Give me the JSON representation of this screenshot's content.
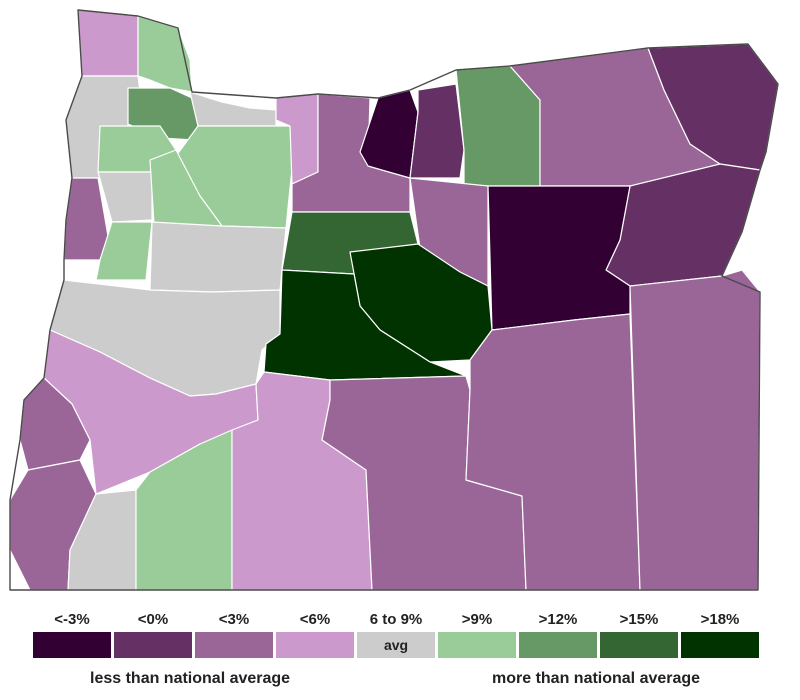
{
  "map": {
    "colors": {
      "lt_neg3": "#330033",
      "lt_0": "#653063",
      "lt_3": "#9a6698",
      "lt_6": "#cc99cc",
      "avg": "#cccccc",
      "gt_9": "#99cc99",
      "gt_12": "#669966",
      "gt_15": "#336633",
      "gt_18": "#003300"
    }
  },
  "legend": {
    "items": [
      {
        "label": "<-3%",
        "color": "#330033"
      },
      {
        "label": "<0%",
        "color": "#653063"
      },
      {
        "label": "<3%",
        "color": "#9a6698"
      },
      {
        "label": "<6%",
        "color": "#cc99cc"
      },
      {
        "label": "6 to 9%",
        "color": "#cccccc",
        "swatch_text": "avg"
      },
      {
        "label": ">9%",
        "color": "#99cc99"
      },
      {
        "label": ">12%",
        "color": "#669966"
      },
      {
        "label": ">15%",
        "color": "#336633"
      },
      {
        "label": ">18%",
        "color": "#003300"
      }
    ],
    "note_left": "less than national average",
    "note_right": "more than national average"
  }
}
